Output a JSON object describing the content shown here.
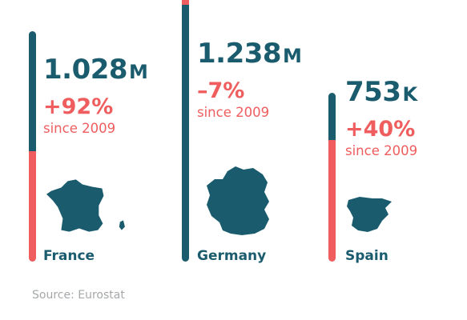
{
  "colors": {
    "teal": "#1a5c6e",
    "coral": "#ef5d5e"
  },
  "chart_data": {
    "type": "bar",
    "categories": [
      "France",
      "Germany",
      "Spain"
    ],
    "series": [
      {
        "values": [
          1.028,
          1.238,
          0.753
        ],
        "display": [
          "1.028",
          "1.238",
          "753"
        ],
        "units": [
          "M",
          "M",
          "K"
        ]
      }
    ],
    "change_since_2009": [
      "+92%",
      "–7%",
      "+40%"
    ],
    "change_share": [
      0.48,
      0.075,
      0.72
    ],
    "since_label": "since 2009",
    "map_icons": [
      "france-map-icon",
      "germany-map-icon",
      "spain-map-icon"
    ]
  },
  "source": "Source: Eurostat"
}
